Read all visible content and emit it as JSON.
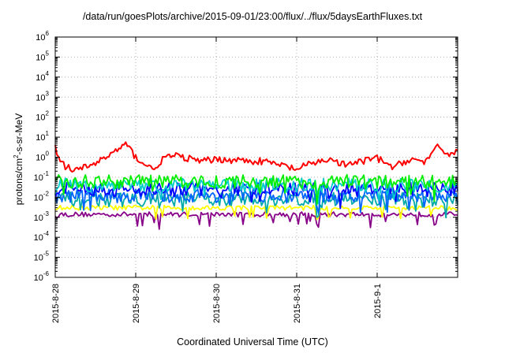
{
  "chart_data": {
    "type": "line",
    "title": "/data/run/goesPlots/archive/2015-09-01/23:00/flux/../flux/5daysEarthFluxes.txt",
    "xlabel": "Coordinated Universal Time (UTC)",
    "ylabel": {
      "base": "protons/cm",
      "sup": "2",
      "rest": "-s-sr-MeV"
    },
    "y_scale": "log",
    "ylim": [
      1e-06,
      1000000.0
    ],
    "y_ticks": [
      {
        "base": "10",
        "exp": "-6"
      },
      {
        "base": "10",
        "exp": "-5"
      },
      {
        "base": "10",
        "exp": "-4"
      },
      {
        "base": "10",
        "exp": "-3"
      },
      {
        "base": "10",
        "exp": "-2"
      },
      {
        "base": "10",
        "exp": "-1"
      },
      {
        "base": "10",
        "exp": "0"
      },
      {
        "base": "10",
        "exp": "1"
      },
      {
        "base": "10",
        "exp": "2"
      },
      {
        "base": "10",
        "exp": "3"
      },
      {
        "base": "10",
        "exp": "4"
      },
      {
        "base": "10",
        "exp": "5"
      },
      {
        "base": "10",
        "exp": "6"
      }
    ],
    "x_range": [
      "2015-08-28",
      "2015-09-02"
    ],
    "x_ticks": [
      "2015-8-28",
      "2015-8-29",
      "2015-8-30",
      "2015-8-31",
      "2015-9-1"
    ],
    "grid": true,
    "series": [
      {
        "color": "#ff0000",
        "x_days": [
          0,
          0.1,
          0.25,
          0.35,
          0.5,
          0.75,
          0.88,
          1.0,
          1.2,
          1.4,
          1.6,
          1.8,
          2.0,
          2.3,
          2.6,
          2.8,
          3.0,
          3.2,
          3.4,
          3.6,
          3.8,
          4.0,
          4.2,
          4.4,
          4.6,
          4.75,
          4.88,
          5.0
        ],
        "values": [
          3.0,
          0.4,
          0.2,
          0.3,
          0.5,
          2.0,
          4.5,
          1.0,
          0.25,
          1.2,
          1.0,
          0.6,
          0.8,
          0.7,
          0.6,
          0.4,
          0.25,
          0.5,
          0.8,
          0.4,
          0.6,
          0.9,
          0.3,
          0.8,
          0.6,
          3.0,
          1.5,
          2.0
        ]
      },
      {
        "color": "#00ee00",
        "typical": 0.06
      },
      {
        "color": "#00cccc",
        "typical": 0.04
      },
      {
        "color": "#0000ff",
        "typical": 0.025
      },
      {
        "color": "#0066ff",
        "typical": 0.012
      },
      {
        "color": "#00aaaa",
        "typical": 0.008
      },
      {
        "color": "#ffff00",
        "typical": 0.003
      },
      {
        "color": "#880088",
        "typical": 0.0014
      }
    ]
  }
}
